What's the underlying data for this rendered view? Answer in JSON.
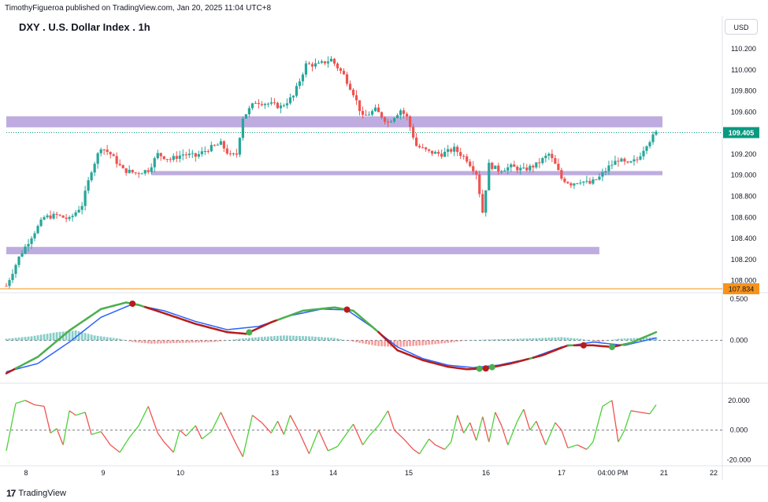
{
  "header": {
    "publisher_line": "TimothyFigueroa published on TradingView.com, Jan 20, 2025 11:04 UTC+8",
    "title": "DXY . U.S. Dollar Index . 1h",
    "currency_button": "USD"
  },
  "footer": {
    "logo_mark": "17",
    "logo_text": "TradingView"
  },
  "colors": {
    "up": "#26a69a",
    "down": "#ef5350",
    "zone": "#b39ddb",
    "last_price": "#089981",
    "orange_line": "#f7931a",
    "wt1_fast": "#4caf50",
    "wt1_slow_red": "#b71c1c",
    "wt2": "#2962ff",
    "hist_up": "#26a69a",
    "hist_down": "#ef5350"
  },
  "chart_data": [
    {
      "type": "candlestick",
      "title": "DXY . U.S. Dollar Index . 1h",
      "ylim": [
        107.9,
        110.35
      ],
      "y_ticks": [
        "110.200",
        "110.000",
        "109.800",
        "109.600",
        "109.400",
        "109.200",
        "109.000",
        "108.800",
        "108.600",
        "108.400",
        "108.200",
        "108.000"
      ],
      "x_ticks": [
        "8",
        "9",
        "10",
        "13",
        "14",
        "15",
        "16",
        "17",
        "04:00 PM",
        "21",
        "22"
      ],
      "last_price_label": "109.405",
      "low_line_label": "107.834",
      "close_anchors": [
        [
          0,
          107.95
        ],
        [
          4,
          108.22
        ],
        [
          8,
          108.42
        ],
        [
          12,
          108.6
        ],
        [
          16,
          108.62
        ],
        [
          20,
          108.58
        ],
        [
          24,
          108.72
        ],
        [
          27,
          109.05
        ],
        [
          30,
          109.27
        ],
        [
          33,
          109.2
        ],
        [
          37,
          109.05
        ],
        [
          41,
          109.02
        ],
        [
          45,
          109.05
        ],
        [
          48,
          109.2
        ],
        [
          52,
          109.15
        ],
        [
          56,
          109.2
        ],
        [
          60,
          109.18
        ],
        [
          64,
          109.25
        ],
        [
          68,
          109.3
        ],
        [
          71,
          109.18
        ],
        [
          73,
          109.2
        ],
        [
          75,
          109.55
        ],
        [
          79,
          109.7
        ],
        [
          83,
          109.68
        ],
        [
          87,
          109.65
        ],
        [
          91,
          109.75
        ],
        [
          95,
          110.05
        ],
        [
          99,
          110.05
        ],
        [
          103,
          110.1
        ],
        [
          107,
          109.95
        ],
        [
          110,
          109.78
        ],
        [
          113,
          109.55
        ],
        [
          117,
          109.62
        ],
        [
          121,
          109.5
        ],
        [
          125,
          109.62
        ],
        [
          127,
          109.55
        ],
        [
          130,
          109.28
        ],
        [
          134,
          109.22
        ],
        [
          138,
          109.2
        ],
        [
          142,
          109.25
        ],
        [
          146,
          109.15
        ],
        [
          149,
          109.02
        ],
        [
          151,
          108.65
        ],
        [
          153,
          109.1
        ],
        [
          156,
          109.05
        ],
        [
          160,
          109.08
        ],
        [
          164,
          109.05
        ],
        [
          168,
          109.1
        ],
        [
          172,
          109.2
        ],
        [
          174,
          109.1
        ],
        [
          176,
          108.97
        ],
        [
          179,
          108.92
        ],
        [
          182,
          108.95
        ],
        [
          185,
          108.92
        ],
        [
          188,
          108.98
        ],
        [
          191,
          109.08
        ],
        [
          194,
          109.15
        ],
        [
          197,
          109.1
        ],
        [
          200,
          109.15
        ],
        [
          203,
          109.3
        ],
        [
          206,
          109.4
        ]
      ],
      "horizontal_zones": [
        {
          "name": "upper-zone",
          "y_from": 109.455,
          "y_to": 109.56,
          "x_from_bar": 0,
          "x_to_bar": 208
        },
        {
          "name": "middle-zone",
          "y_from": 109.0,
          "y_to": 109.04,
          "x_from_bar": 46,
          "x_to_bar": 208
        },
        {
          "name": "lower-zone",
          "y_from": 108.25,
          "y_to": 108.32,
          "x_from_bar": 0,
          "x_to_bar": 188
        }
      ]
    },
    {
      "type": "line",
      "name": "oscillator-1",
      "y_ticks": [
        "0.500",
        "0.000"
      ],
      "ylim": [
        -0.5,
        0.55
      ],
      "fast_anchors": [
        [
          0,
          -0.4
        ],
        [
          10,
          -0.2
        ],
        [
          20,
          0.12
        ],
        [
          30,
          0.38
        ],
        [
          38,
          0.46
        ],
        [
          42,
          0.43
        ],
        [
          50,
          0.33
        ],
        [
          60,
          0.2
        ],
        [
          70,
          0.1
        ],
        [
          76,
          0.08
        ],
        [
          84,
          0.22
        ],
        [
          94,
          0.36
        ],
        [
          104,
          0.4
        ],
        [
          110,
          0.36
        ],
        [
          118,
          0.1
        ],
        [
          124,
          -0.12
        ],
        [
          132,
          -0.24
        ],
        [
          140,
          -0.32
        ],
        [
          146,
          -0.35
        ],
        [
          152,
          -0.34
        ],
        [
          160,
          -0.28
        ],
        [
          170,
          -0.18
        ],
        [
          178,
          -0.06
        ],
        [
          186,
          -0.06
        ],
        [
          192,
          -0.08
        ],
        [
          198,
          -0.03
        ],
        [
          206,
          0.1
        ]
      ],
      "slow_anchors": [
        [
          0,
          -0.38
        ],
        [
          10,
          -0.28
        ],
        [
          20,
          -0.02
        ],
        [
          30,
          0.28
        ],
        [
          40,
          0.44
        ],
        [
          50,
          0.36
        ],
        [
          60,
          0.23
        ],
        [
          70,
          0.13
        ],
        [
          80,
          0.17
        ],
        [
          90,
          0.3
        ],
        [
          100,
          0.38
        ],
        [
          108,
          0.37
        ],
        [
          116,
          0.16
        ],
        [
          124,
          -0.08
        ],
        [
          132,
          -0.22
        ],
        [
          140,
          -0.3
        ],
        [
          148,
          -0.33
        ],
        [
          156,
          -0.3
        ],
        [
          166,
          -0.22
        ],
        [
          176,
          -0.08
        ],
        [
          186,
          -0.02
        ],
        [
          196,
          -0.06
        ],
        [
          206,
          0.03
        ]
      ],
      "hist_anchors": [
        [
          0,
          0.02
        ],
        [
          8,
          0.05
        ],
        [
          16,
          0.1
        ],
        [
          22,
          0.12
        ],
        [
          28,
          0.06
        ],
        [
          36,
          0.02
        ],
        [
          40,
          -0.02
        ],
        [
          46,
          -0.04
        ],
        [
          56,
          -0.03
        ],
        [
          66,
          -0.02
        ],
        [
          74,
          0.02
        ],
        [
          80,
          0.04
        ],
        [
          88,
          0.06
        ],
        [
          96,
          0.05
        ],
        [
          104,
          0.03
        ],
        [
          112,
          -0.03
        ],
        [
          118,
          -0.07
        ],
        [
          124,
          -0.08
        ],
        [
          132,
          -0.06
        ],
        [
          140,
          -0.03
        ],
        [
          146,
          0
        ],
        [
          152,
          0.01
        ],
        [
          162,
          0.02
        ],
        [
          170,
          0.03
        ],
        [
          176,
          0.04
        ],
        [
          182,
          0.02
        ],
        [
          188,
          -0.02
        ],
        [
          194,
          0.02
        ],
        [
          200,
          0.03
        ],
        [
          206,
          0.04
        ]
      ],
      "cross_markers": [
        {
          "bar": 40,
          "color": "down"
        },
        {
          "bar": 77,
          "color": "up"
        },
        {
          "bar": 108,
          "color": "down"
        },
        {
          "bar": 150,
          "color": "up"
        },
        {
          "bar": 152,
          "color": "down"
        },
        {
          "bar": 154,
          "color": "up"
        },
        {
          "bar": 183,
          "color": "down"
        },
        {
          "bar": 192,
          "color": "up"
        }
      ]
    },
    {
      "type": "line",
      "name": "oscillator-2",
      "y_ticks": [
        "20.000",
        "0.000",
        "-20.000"
      ],
      "ylim": [
        -23,
        30
      ],
      "anchors": [
        [
          0,
          -14
        ],
        [
          3,
          18
        ],
        [
          6,
          20
        ],
        [
          9,
          17
        ],
        [
          12,
          16
        ],
        [
          14,
          -2
        ],
        [
          16,
          1
        ],
        [
          18,
          -10
        ],
        [
          20,
          13
        ],
        [
          22,
          10
        ],
        [
          25,
          12
        ],
        [
          27,
          -3
        ],
        [
          30,
          -1
        ],
        [
          33,
          -10
        ],
        [
          36,
          -15
        ],
        [
          39,
          -5
        ],
        [
          42,
          3
        ],
        [
          45,
          16
        ],
        [
          48,
          -2
        ],
        [
          50,
          -8
        ],
        [
          53,
          -15
        ],
        [
          55,
          0
        ],
        [
          57,
          -4
        ],
        [
          60,
          3
        ],
        [
          62,
          -6
        ],
        [
          65,
          -1
        ],
        [
          68,
          12
        ],
        [
          70,
          3
        ],
        [
          73,
          -10
        ],
        [
          75,
          -18
        ],
        [
          78,
          10
        ],
        [
          81,
          5
        ],
        [
          84,
          -2
        ],
        [
          86,
          6
        ],
        [
          88,
          -3
        ],
        [
          90,
          10
        ],
        [
          93,
          -2
        ],
        [
          96,
          -16
        ],
        [
          99,
          0
        ],
        [
          102,
          -14
        ],
        [
          105,
          -11
        ],
        [
          108,
          -2
        ],
        [
          110,
          4
        ],
        [
          113,
          -10
        ],
        [
          115,
          -4
        ],
        [
          118,
          3
        ],
        [
          121,
          13
        ],
        [
          123,
          0
        ],
        [
          126,
          -6
        ],
        [
          129,
          -13
        ],
        [
          131,
          -16
        ],
        [
          134,
          -6
        ],
        [
          136,
          -10
        ],
        [
          139,
          -13
        ],
        [
          141,
          -8
        ],
        [
          143,
          10
        ],
        [
          145,
          -2
        ],
        [
          147,
          5
        ],
        [
          149,
          -7
        ],
        [
          151,
          9
        ],
        [
          153,
          -8
        ],
        [
          155,
          12
        ],
        [
          157,
          3
        ],
        [
          159,
          -10
        ],
        [
          162,
          6
        ],
        [
          164,
          14
        ],
        [
          166,
          0
        ],
        [
          168,
          6
        ],
        [
          171,
          -10
        ],
        [
          174,
          5
        ],
        [
          176,
          0
        ],
        [
          178,
          -12
        ],
        [
          181,
          -10
        ],
        [
          184,
          -13
        ],
        [
          186,
          -8
        ],
        [
          189,
          16
        ],
        [
          192,
          20
        ],
        [
          194,
          -8
        ],
        [
          196,
          0
        ],
        [
          198,
          13
        ],
        [
          201,
          12
        ],
        [
          204,
          11
        ],
        [
          206,
          17
        ]
      ]
    }
  ]
}
